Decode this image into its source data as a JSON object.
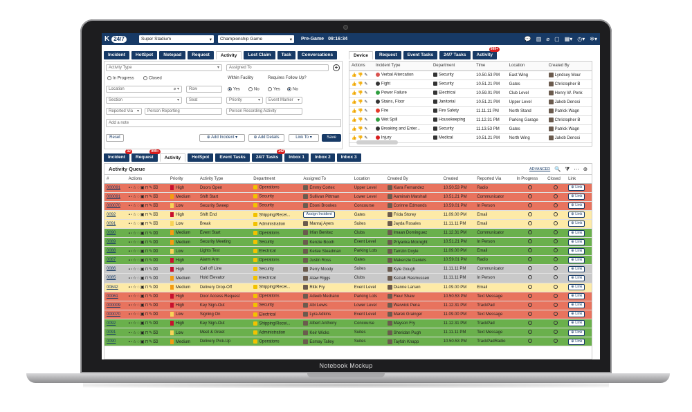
{
  "mockup_label": "Notebook Mockup",
  "topbar": {
    "logo_text": "24/7",
    "venue": "Super Stadium",
    "event": "Championship Game",
    "status": "Pre-Game",
    "clock": "09:16:34"
  },
  "form": {
    "tabs": [
      "Incident",
      "HotSpot",
      "Notepad",
      "Request",
      "Activity",
      "Lost Claim",
      "Task",
      "Conversations"
    ],
    "active_tab": "Activity",
    "activity_type_ph": "Activity Type",
    "assigned_to_ph": "Assigned To",
    "in_progress": "In Progress",
    "closed": "Closed",
    "within_facility": "Within Facility",
    "requires_follow_up": "Requires Follow Up?",
    "yes": "Yes",
    "no": "No",
    "location_ph": "Location",
    "row_ph": "Row",
    "section_ph": "Section",
    "seat_ph": "Seat",
    "priority_ph": "Priority",
    "event_marker_ph": "Event Marker",
    "reported_via_ph": "Reported Via",
    "person_reporting_ph": "Person Reporting",
    "person_recording_ph": "Person Recording Activity",
    "note_ph": "Add a note",
    "reset": "Reset",
    "add_incident": "Add Incident",
    "add_details": "Add Details",
    "link_to": "Link To",
    "save": "Save"
  },
  "device": {
    "tabs": [
      {
        "label": "Device",
        "badge": ""
      },
      {
        "label": "Request",
        "badge": ""
      },
      {
        "label": "Event Tasks",
        "badge": ""
      },
      {
        "label": "24/7 Tasks",
        "badge": ""
      },
      {
        "label": "Activity",
        "badge": "999+"
      }
    ],
    "columns": [
      "Actions",
      "Incident Type",
      "Department",
      "Time",
      "Location",
      "Created By"
    ],
    "rows": [
      {
        "type": "Verbal Altercation",
        "type_color": "#d9534f",
        "dept": "Security",
        "time": "10.50.53 PM",
        "loc": "East Wing",
        "by": "Lyndsey Mour"
      },
      {
        "type": "Fight",
        "type_color": "#333333",
        "dept": "Security",
        "time": "10.51.21 PM",
        "loc": "Gates",
        "by": "Christopher B"
      },
      {
        "type": "Power Failure",
        "type_color": "#2e9e3e",
        "dept": "Electrical",
        "time": "10.59.01 PM",
        "loc": "Club Level",
        "by": "Henry W. Penk"
      },
      {
        "type": "Stains, Floor",
        "type_color": "#333333",
        "dept": "Janitorial",
        "time": "10.51.21 PM",
        "loc": "Upper Level",
        "by": "Jakob Denosi"
      },
      {
        "type": "Fire",
        "type_color": "#e53a2a",
        "dept": "Fire Safety",
        "time": "11.11.11 PM",
        "loc": "North Stand",
        "by": "Patrick Wagn"
      },
      {
        "type": "Wet Spill",
        "type_color": "#2e9e3e",
        "dept": "Housekeeping",
        "time": "11.12.31 PM",
        "loc": "Parking Garage",
        "by": "Christopher B"
      },
      {
        "type": "Breaking and Enter...",
        "type_color": "#333333",
        "dept": "Security",
        "time": "11.13.53 PM",
        "loc": "Gates",
        "by": "Patrick Wagn"
      },
      {
        "type": "Injury",
        "type_color": "#d81e1e",
        "dept": "Medical",
        "time": "10.51.21 PM",
        "loc": "North Wing",
        "by": "Jakob Denosi"
      }
    ]
  },
  "queue": {
    "tabs": [
      {
        "label": "Incident",
        "badge": "32"
      },
      {
        "label": "Request",
        "badge": "999+"
      },
      {
        "label": "Activity",
        "badge": ""
      },
      {
        "label": "HotSpot",
        "badge": ""
      },
      {
        "label": "Event Tasks",
        "badge": ""
      },
      {
        "label": "24/7 Tasks",
        "badge": "142"
      },
      {
        "label": "Inbox 1",
        "badge": ""
      },
      {
        "label": "Inbox 2",
        "badge": ""
      },
      {
        "label": "Inbox 3",
        "badge": ""
      }
    ],
    "title": "Activity Queue",
    "advanced": "ADVANCED",
    "columns": [
      "#",
      "Actions",
      "Priority",
      "Activity Type",
      "Department",
      "Assigned To",
      "Location",
      "Created By",
      "Created",
      "Reported Via",
      "In Progress",
      "Closed",
      "Link"
    ],
    "link_label": "Link",
    "assign_label": "Assign Incident",
    "rows": [
      {
        "id": "000091",
        "bg": "#e8735e",
        "pri": "High",
        "pri_color": "#c8102e",
        "type": "Doors Open",
        "dept": "Operations",
        "assigned": "Emmy Cortex",
        "loc": "Upper Level",
        "by": "Kiara Fernandez",
        "created": "10.50.53 PM",
        "via": "Radio"
      },
      {
        "id": "000091",
        "bg": "#e8735e",
        "pri": "Medium",
        "pri_color": "#f39c12",
        "type": "Shift Start",
        "dept": "Security",
        "assigned": "Sullivan Pittman",
        "loc": "Lower Level",
        "by": "Aaminah Marshall",
        "created": "10.51.21 PM",
        "via": "Communicator"
      },
      {
        "id": "000070",
        "bg": "#e8735e",
        "pri": "Low",
        "pri_color": "#f7d358",
        "type": "Security Sweep",
        "dept": "Security",
        "assigned": "Eboni Brookes",
        "loc": "Concourse",
        "by": "Corinne Edmonds",
        "created": "10.59.01 PM",
        "via": "In Person"
      },
      {
        "id": "0092",
        "bg": "#fdeaa7",
        "pri": "High",
        "pri_color": "#c8102e",
        "type": "Shift End",
        "dept": "Shipping/Recei...",
        "assigned": "",
        "loc": "Gates",
        "by": "Frida Storey",
        "created": "11.09.00 PM",
        "via": "Email"
      },
      {
        "id": "0091",
        "bg": "#fdeaa7",
        "pri": "Low",
        "pri_color": "#f7d358",
        "type": "Break",
        "dept": "Administration",
        "assigned": "Manraj Ayers",
        "loc": "Suites",
        "by": "Jayda Rosales",
        "created": "11.11.11 PM",
        "via": "Email"
      },
      {
        "id": "0090",
        "bg": "#6ab04c",
        "pri": "Medium",
        "pri_color": "#f39c12",
        "type": "Event Start",
        "dept": "Operations",
        "assigned": "Irfan Benitez",
        "loc": "Clubs",
        "by": "Imaan Dominguez",
        "created": "11.12.31 PM",
        "via": "Communicator"
      },
      {
        "id": "0089",
        "bg": "#6ab04c",
        "pri": "Medium",
        "pri_color": "#f39c12",
        "type": "Security Meeting",
        "dept": "Security",
        "assigned": "Kenzie Booth",
        "loc": "Event Level",
        "by": "Priyanka Mcknight",
        "created": "10.51.21 PM",
        "via": "In Person"
      },
      {
        "id": "0088",
        "bg": "#6ab04c",
        "pri": "Low",
        "pri_color": "#f7d358",
        "type": "Lights Test",
        "dept": "Electrical",
        "assigned": "Kelsie Steadman",
        "loc": "Parking Lots",
        "by": "Tamzin Doyle",
        "created": "11.09.00 PM",
        "via": "Email"
      },
      {
        "id": "0087",
        "bg": "#6ab04c",
        "pri": "High",
        "pri_color": "#c8102e",
        "type": "Alarm Arm",
        "dept": "Operations",
        "assigned": "Justin Ross",
        "loc": "Gates",
        "by": "Makenzie Daniels",
        "created": "10.59.01 PM",
        "via": "Radio"
      },
      {
        "id": "0086",
        "bg": "#c9c9c9",
        "pri": "High",
        "pri_color": "#c8102e",
        "type": "Call off Line",
        "dept": "Security",
        "assigned": "Perry Moody",
        "loc": "Suites",
        "by": "Kyle Gough",
        "created": "11.11.11 PM",
        "via": "Communicator"
      },
      {
        "id": "0085",
        "bg": "#c9c9c9",
        "pri": "Medium",
        "pri_color": "#f39c12",
        "type": "Hold Elevator",
        "dept": "Electrical",
        "assigned": "Alaw Riggs",
        "loc": "Clubs",
        "by": "Keziah Rasmussen",
        "created": "11.11.11 PM",
        "via": "In Person"
      },
      {
        "id": "00842",
        "bg": "#fdeaa7",
        "pri": "Medium",
        "pri_color": "#f39c12",
        "type": "Delivery Drop-Off",
        "dept": "Shipping/Recei...",
        "assigned": "Ritik Fry",
        "loc": "Event Level",
        "by": "Dianne Larsen",
        "created": "11.09.00 PM",
        "via": "Email"
      },
      {
        "id": "00061",
        "bg": "#e8735e",
        "pri": "High",
        "pri_color": "#c8102e",
        "type": "Door Access Request",
        "dept": "Operations",
        "assigned": "Adeeb Medrano",
        "loc": "Parking Lots",
        "by": "Fleur Shaw",
        "created": "10.50.53 PM",
        "via": "Text Message"
      },
      {
        "id": "000009",
        "bg": "#e8735e",
        "pri": "High",
        "pri_color": "#c8102e",
        "type": "Key Sign-Out",
        "dept": "Security",
        "assigned": "Abi Lewis",
        "loc": "Lower Level",
        "by": "Warwick Pena",
        "created": "11.12.31 PM",
        "via": "TrackPad"
      },
      {
        "id": "000070",
        "bg": "#e8735e",
        "pri": "Low",
        "pri_color": "#f7d358",
        "type": "Signing On",
        "dept": "Electrical",
        "assigned": "Lyra Adkins",
        "loc": "Event Level",
        "by": "Marek Grainger",
        "created": "11.09.00 PM",
        "via": "Text Message"
      },
      {
        "id": "0092",
        "bg": "#6ab04c",
        "pri": "High",
        "pri_color": "#c8102e",
        "type": "Key Sign-Out",
        "dept": "Shipping/Recei...",
        "assigned": "Albert Anthony",
        "loc": "Concourse",
        "by": "Mayson Fry",
        "created": "11.12.31 PM",
        "via": "TrackPad"
      },
      {
        "id": "0091",
        "bg": "#6ab04c",
        "pri": "Low",
        "pri_color": "#f7d358",
        "type": "Meet & Greet",
        "dept": "Administration",
        "assigned": "Keir Wicks",
        "loc": "Suites",
        "by": "Sheridan Pugh",
        "created": "11.11.11 PM",
        "via": "Text Message"
      },
      {
        "id": "0090",
        "bg": "#6ab04c",
        "pri": "Medium",
        "pri_color": "#f39c12",
        "type": "Delivery Pick-Up",
        "dept": "Operations",
        "assigned": "Esmay Talley",
        "loc": "Suites",
        "by": "Tayfah Knapp",
        "created": "10.50.53 PM",
        "via": "TrackPadRadio"
      }
    ]
  }
}
